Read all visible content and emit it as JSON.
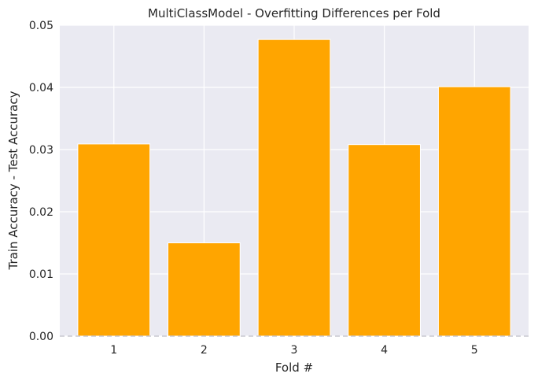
{
  "chart_data": {
    "type": "bar",
    "title": "MultiClassModel - Overfitting Differences per Fold",
    "xlabel": "Fold #",
    "ylabel": "Train Accuracy - Test Accuracy",
    "categories": [
      "1",
      "2",
      "3",
      "4",
      "5"
    ],
    "values": [
      0.0309,
      0.015,
      0.0477,
      0.0308,
      0.0401
    ],
    "ylim": [
      0,
      0.05
    ],
    "yticks": [
      "0.00",
      "0.01",
      "0.02",
      "0.03",
      "0.04",
      "0.05"
    ],
    "grid": true,
    "bar_color": "#FFA500",
    "background_color": "#EAEAF2",
    "grid_color": "#FFFFFF"
  }
}
